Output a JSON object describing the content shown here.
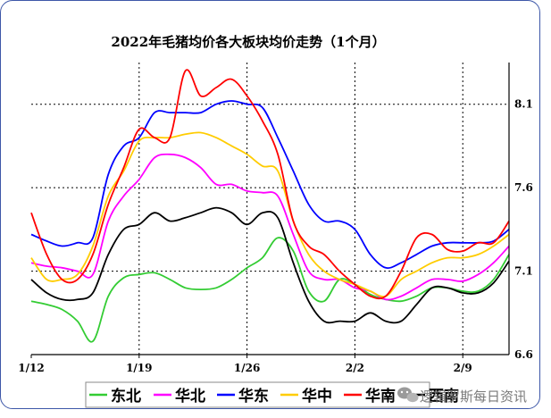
{
  "chart_data": {
    "type": "line",
    "title": "2022年毛猪均价各大板块均价走势（1个月）",
    "x": [
      "1/12",
      "1/13",
      "1/14",
      "1/15",
      "1/16",
      "1/17",
      "1/18",
      "1/19",
      "1/20",
      "1/21",
      "1/22",
      "1/23",
      "1/24",
      "1/25",
      "1/26",
      "1/27",
      "1/28",
      "1/29",
      "1/30",
      "1/31",
      "2/1",
      "2/2",
      "2/3",
      "2/4",
      "2/5",
      "2/6",
      "2/7",
      "2/8",
      "2/9",
      "2/10",
      "2/11",
      "2/12"
    ],
    "x_ticks": [
      "1/12",
      "1/19",
      "1/26",
      "2/2",
      "2/9"
    ],
    "y_ticks": [
      6.6,
      7.1,
      7.6,
      8.1
    ],
    "ylim": [
      6.6,
      8.35
    ],
    "grid": true,
    "y_axis_position": "right",
    "legend_position": "bottom",
    "series": [
      {
        "name": "东北",
        "color": "#33cc33",
        "values": [
          6.92,
          6.9,
          6.87,
          6.8,
          6.68,
          6.95,
          7.06,
          7.08,
          7.09,
          7.05,
          7.0,
          6.99,
          7.0,
          7.05,
          7.12,
          7.18,
          7.3,
          7.22,
          6.98,
          6.92,
          7.05,
          7.02,
          6.96,
          6.93,
          6.92,
          6.95,
          7.0,
          7.0,
          6.98,
          6.98,
          7.05,
          7.2
        ]
      },
      {
        "name": "华北",
        "color": "#ff00ff",
        "values": [
          7.15,
          7.13,
          7.12,
          7.1,
          7.08,
          7.4,
          7.55,
          7.65,
          7.78,
          7.8,
          7.78,
          7.72,
          7.62,
          7.62,
          7.58,
          7.57,
          7.55,
          7.32,
          7.1,
          7.05,
          7.05,
          7.0,
          6.98,
          6.93,
          6.95,
          7.0,
          7.05,
          7.05,
          7.04,
          7.08,
          7.15,
          7.25
        ]
      },
      {
        "name": "华东",
        "color": "#0000ff",
        "values": [
          7.32,
          7.28,
          7.25,
          7.27,
          7.3,
          7.68,
          7.85,
          7.9,
          8.05,
          8.05,
          8.05,
          8.05,
          8.1,
          8.12,
          8.1,
          8.08,
          7.9,
          7.7,
          7.5,
          7.4,
          7.4,
          7.35,
          7.2,
          7.12,
          7.15,
          7.2,
          7.25,
          7.27,
          7.27,
          7.27,
          7.28,
          7.35
        ]
      },
      {
        "name": "华中",
        "color": "#ffcc00",
        "values": [
          7.18,
          7.05,
          7.05,
          7.08,
          7.25,
          7.55,
          7.7,
          7.88,
          7.9,
          7.9,
          7.92,
          7.93,
          7.9,
          7.85,
          7.8,
          7.73,
          7.7,
          7.4,
          7.2,
          7.1,
          7.05,
          7.02,
          6.98,
          6.95,
          7.05,
          7.1,
          7.15,
          7.18,
          7.18,
          7.2,
          7.25,
          7.32
        ]
      },
      {
        "name": "华南",
        "color": "#ff0000",
        "values": [
          7.45,
          7.2,
          7.05,
          7.05,
          7.2,
          7.5,
          7.72,
          7.95,
          7.9,
          7.9,
          8.3,
          8.15,
          8.2,
          8.25,
          8.15,
          8.0,
          7.8,
          7.4,
          7.25,
          7.2,
          7.1,
          7.02,
          6.95,
          6.95,
          7.1,
          7.3,
          7.32,
          7.23,
          7.22,
          7.27,
          7.27,
          7.4
        ]
      },
      {
        "name": "西南",
        "color": "#000000",
        "values": [
          7.05,
          6.97,
          6.93,
          6.93,
          6.97,
          7.2,
          7.35,
          7.38,
          7.45,
          7.4,
          7.42,
          7.45,
          7.48,
          7.45,
          7.38,
          7.45,
          7.42,
          7.15,
          6.92,
          6.8,
          6.8,
          6.8,
          6.85,
          6.8,
          6.8,
          6.9,
          7.0,
          7.0,
          6.97,
          6.97,
          7.03,
          7.16
        ]
      }
    ]
  },
  "legend_items": [
    "东北",
    "华北",
    "华东",
    "华中",
    "华南",
    "西南"
  ],
  "watermark": "逻辑罗斯每日资讯"
}
